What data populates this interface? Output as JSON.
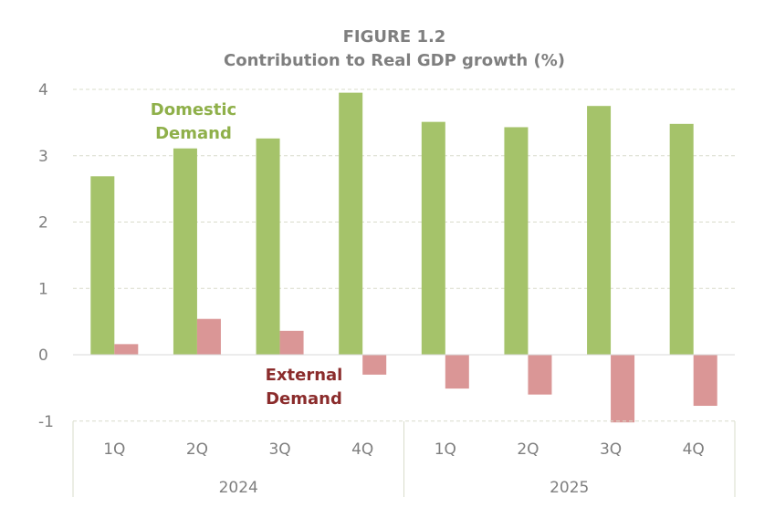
{
  "chart_data": {
    "type": "bar",
    "title": "FIGURE 1.2",
    "subtitle": "Contribution to Real GDP growth (%)",
    "categories": [
      "1Q",
      "2Q",
      "3Q",
      "4Q",
      "1Q",
      "2Q",
      "3Q",
      "4Q"
    ],
    "groups": [
      {
        "label": "2024",
        "span": 4
      },
      {
        "label": "2025",
        "span": 4
      }
    ],
    "series": [
      {
        "name": "Domestic Demand",
        "label_lines": [
          "Domestic",
          "Demand"
        ],
        "color": "#a5c36a",
        "values": [
          2.69,
          3.11,
          3.26,
          3.95,
          3.51,
          3.43,
          3.75,
          3.48
        ]
      },
      {
        "name": "External Demand",
        "label_lines": [
          "External",
          "Demand"
        ],
        "color": "#da9696",
        "values": [
          0.16,
          0.54,
          0.36,
          -0.3,
          -0.51,
          -0.6,
          -1.02,
          -0.77
        ]
      }
    ],
    "label_colors": {
      "Domestic Demand": "#8fb04a",
      "External Demand": "#8b2c2c"
    },
    "ylim": [
      -1,
      4
    ],
    "yticks": [
      "-1",
      "0",
      "1",
      "2",
      "3",
      "4"
    ],
    "grid": true,
    "legend": "inline labels"
  }
}
